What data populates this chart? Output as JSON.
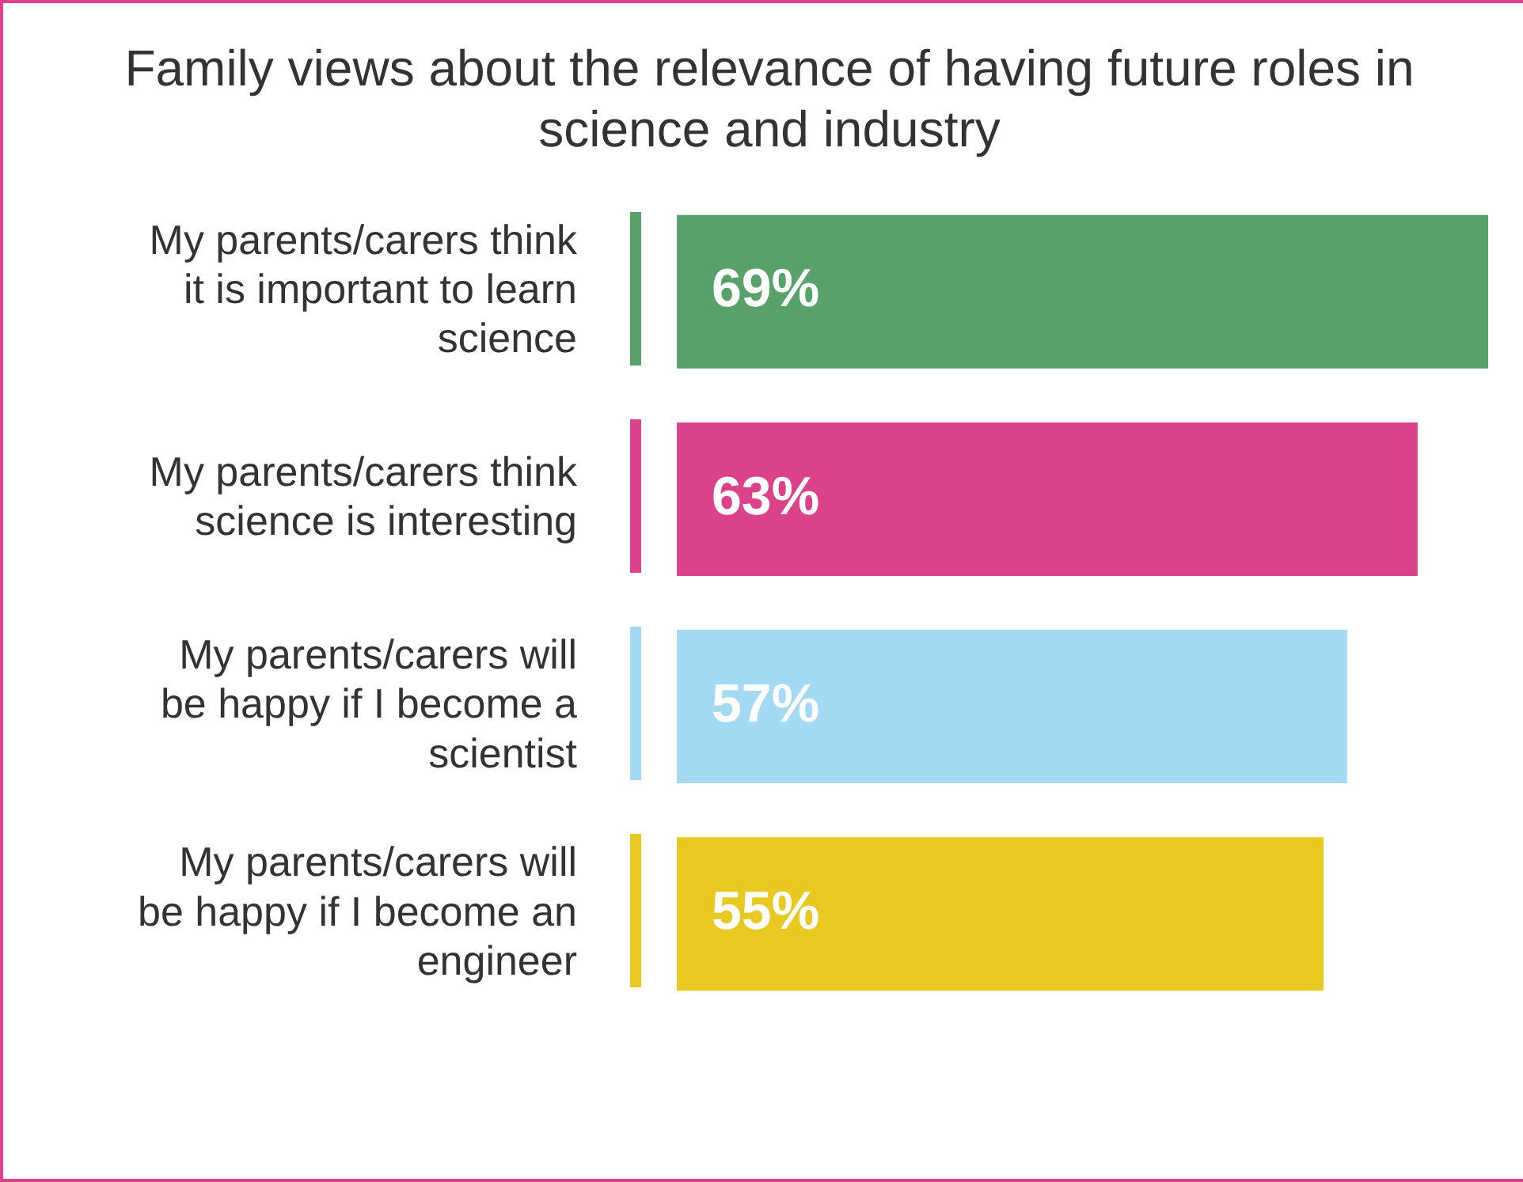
{
  "chart_data": {
    "type": "bar",
    "orientation": "horizontal",
    "title": "Family views about the relevance of having future roles in science and industry",
    "categories": [
      "My parents/carers think it is important to learn science",
      "My parents/carers think science is interesting",
      "My parents/carers will be happy if I become a scientist",
      "My parents/carers will be happy if I become an engineer"
    ],
    "values": [
      69,
      63,
      57,
      55
    ],
    "value_labels": [
      "69%",
      "63%",
      "57%",
      "55%"
    ],
    "colors": [
      "#58a16b",
      "#dc428a",
      "#a3d9f2",
      "#e8c921"
    ],
    "tick_labels": "y",
    "legend": false
  }
}
